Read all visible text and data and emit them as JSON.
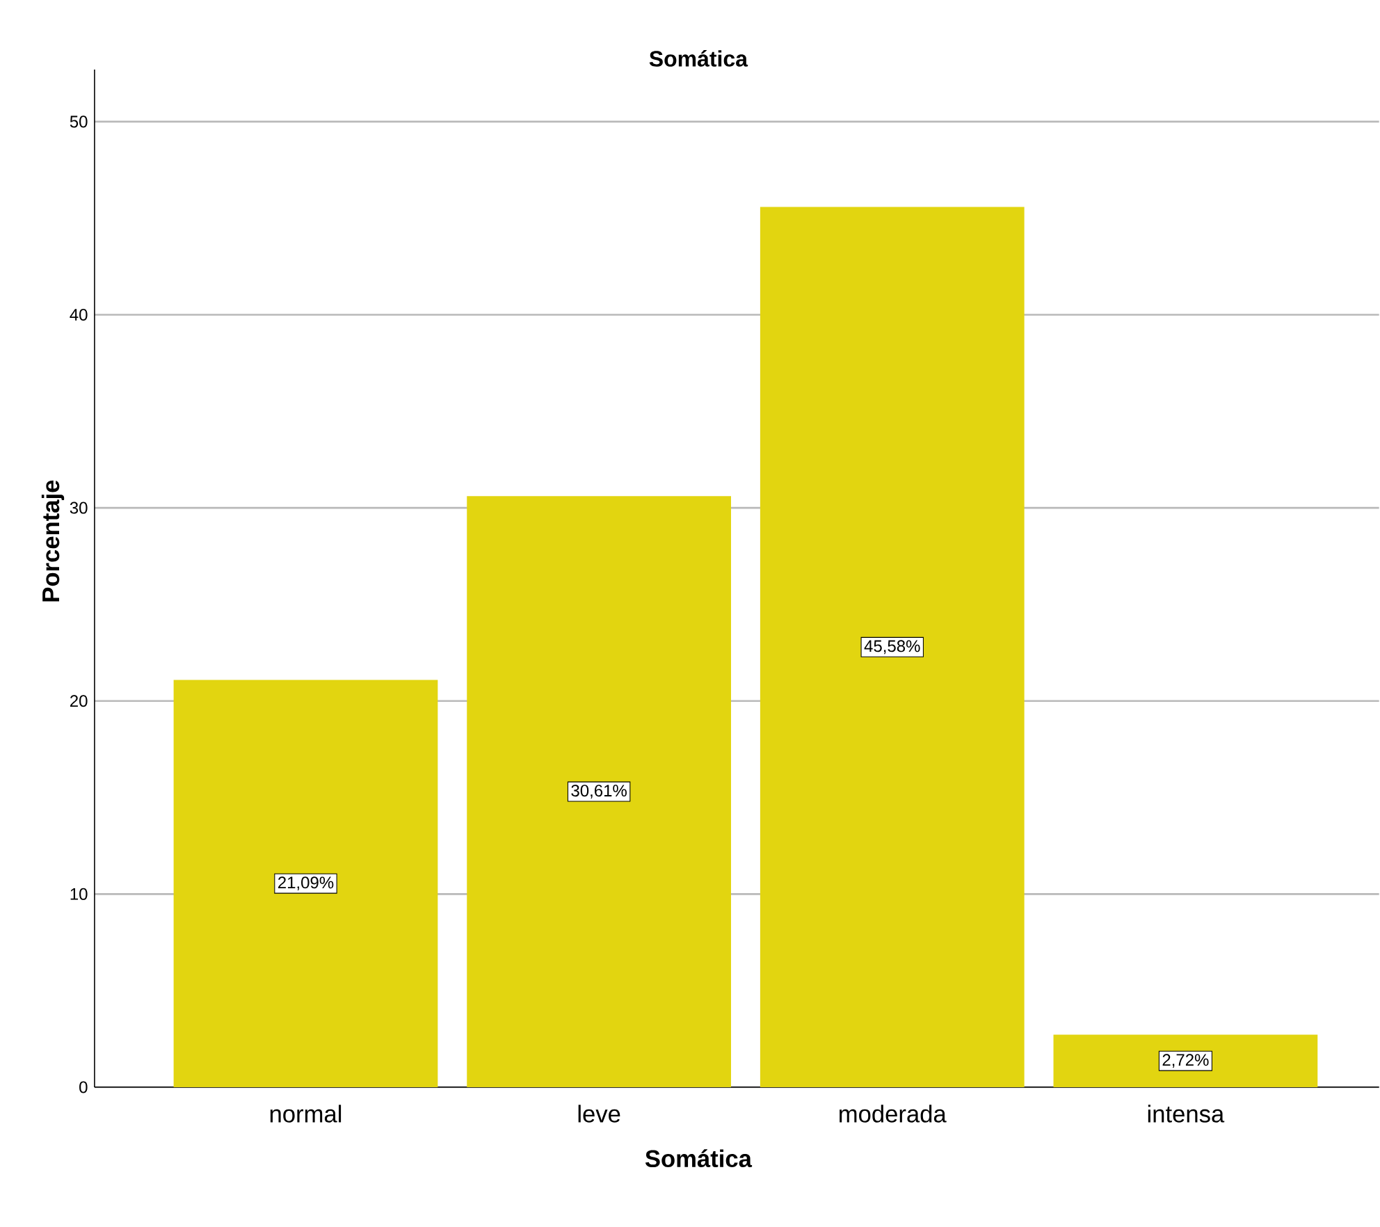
{
  "chart_data": {
    "type": "bar",
    "title": "Somática",
    "xlabel": "Somática",
    "ylabel": "Porcentaje",
    "categories": [
      "normal",
      "leve",
      "moderada",
      "intensa"
    ],
    "values": [
      21.09,
      30.61,
      45.58,
      2.72
    ],
    "value_labels": [
      "21,09%",
      "30,61%",
      "45,58%",
      "2,72%"
    ],
    "color": "#e2d510",
    "ylim": [
      0,
      52.7
    ],
    "yticks": [
      0,
      10,
      20,
      30,
      40,
      50
    ],
    "grid": "y"
  }
}
